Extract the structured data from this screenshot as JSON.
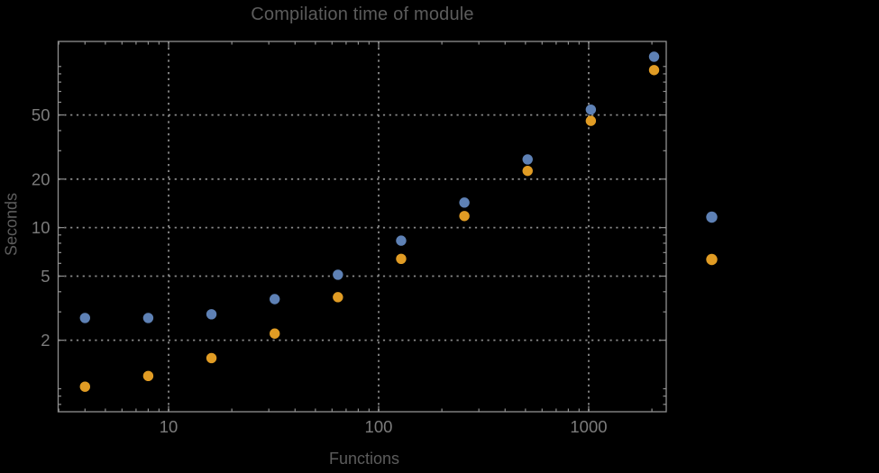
{
  "page": {
    "background": "#000000"
  },
  "chart_data": {
    "type": "scatter",
    "title": "Compilation time of module",
    "xlabel": "Functions",
    "ylabel": "Seconds",
    "x_scale": "log",
    "y_scale": "log",
    "x_domain": [
      2.98,
      2340
    ],
    "y_domain": [
      0.72,
      143
    ],
    "x_ticks": [
      {
        "value": 10,
        "label": "10"
      },
      {
        "value": 100,
        "label": "100"
      },
      {
        "value": 1000,
        "label": "1000"
      }
    ],
    "y_ticks": [
      {
        "value": 2,
        "label": "2"
      },
      {
        "value": 5,
        "label": "5"
      },
      {
        "value": 10,
        "label": "10"
      },
      {
        "value": 20,
        "label": "20"
      },
      {
        "value": 50,
        "label": "50"
      }
    ],
    "grid": {
      "style": "dotted",
      "on_major_ticks": true,
      "color": "#8a8a8a"
    },
    "x": [
      4,
      8,
      16,
      32,
      64,
      128,
      256,
      512,
      1024,
      2048
    ],
    "series": [
      {
        "name": "series-1-blue",
        "color": "#5e81b5",
        "values": [
          2.75,
          2.75,
          2.9,
          3.6,
          5.1,
          8.3,
          14.3,
          26.5,
          54,
          115
        ]
      },
      {
        "name": "series-2-orange",
        "color": "#e19c24",
        "values": [
          1.03,
          1.2,
          1.55,
          2.2,
          3.7,
          6.4,
          11.8,
          22.5,
          46,
          95
        ]
      }
    ],
    "legend": {
      "position": "outside-right",
      "labels_visible": false,
      "marker_colors": [
        "#5e81b5",
        "#e19c24"
      ]
    }
  },
  "style": {
    "title_color": "#5c5c5c",
    "axis_label_color": "#5c5c5c",
    "tick_label_color": "#7c7c7c",
    "frame_color": "#909090",
    "grid_color": "#8a8a8a"
  }
}
